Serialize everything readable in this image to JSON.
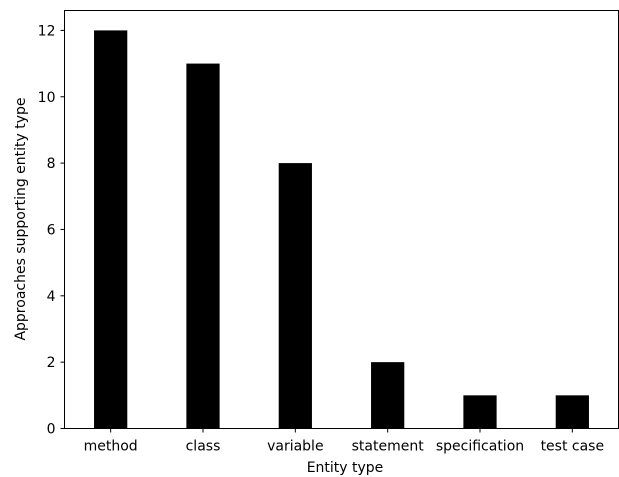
{
  "chart_data": {
    "type": "bar",
    "title": "",
    "xlabel": "Entity type",
    "ylabel": "Approaches supporting entity type",
    "categories": [
      "method",
      "class",
      "variable",
      "statement",
      "specification",
      "test case"
    ],
    "values": [
      12,
      11,
      8,
      2,
      1,
      1
    ],
    "ylim": [
      0,
      12.6
    ],
    "yticks": [
      0,
      2,
      4,
      6,
      8,
      10,
      12
    ],
    "bar_color": "#000000",
    "grid": false,
    "legend": "none"
  }
}
